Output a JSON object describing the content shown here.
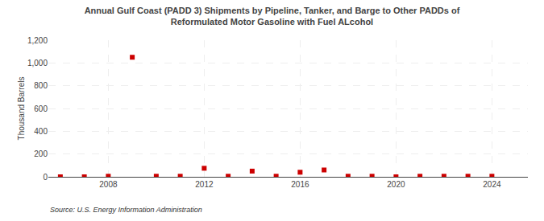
{
  "chart_data": {
    "type": "scatter",
    "title": "Annual Gulf Coast (PADD 3) Shipments by Pipeline, Tanker, and Barge to Other PADDs of\nReformulated Motor Gasoline with Fuel ALcohol",
    "ylabel": "Thousand Barrels",
    "annotations": [
      "Source: U.S. Energy Information Administration"
    ],
    "x": [
      2006,
      2007,
      2008,
      2009,
      2010,
      2011,
      2012,
      2013,
      2014,
      2015,
      2016,
      2017,
      2018,
      2019,
      2020,
      2021,
      2022,
      2023,
      2024
    ],
    "values": [
      0,
      0,
      5,
      1050,
      5,
      5,
      75,
      5,
      50,
      5,
      40,
      60,
      5,
      5,
      0,
      5,
      5,
      5,
      5
    ],
    "color": "#cc0000",
    "marker": "square",
    "xlim": [
      2005.5,
      2025.5
    ],
    "ylim": [
      0,
      1200
    ],
    "xticks": [
      2008,
      2012,
      2016,
      2020,
      2024
    ],
    "yticks": [
      0,
      200,
      400,
      600,
      800,
      {
        "value": 1000,
        "label": "1,000"
      },
      {
        "value": 1200,
        "label": "1,200"
      }
    ],
    "grid": true
  }
}
